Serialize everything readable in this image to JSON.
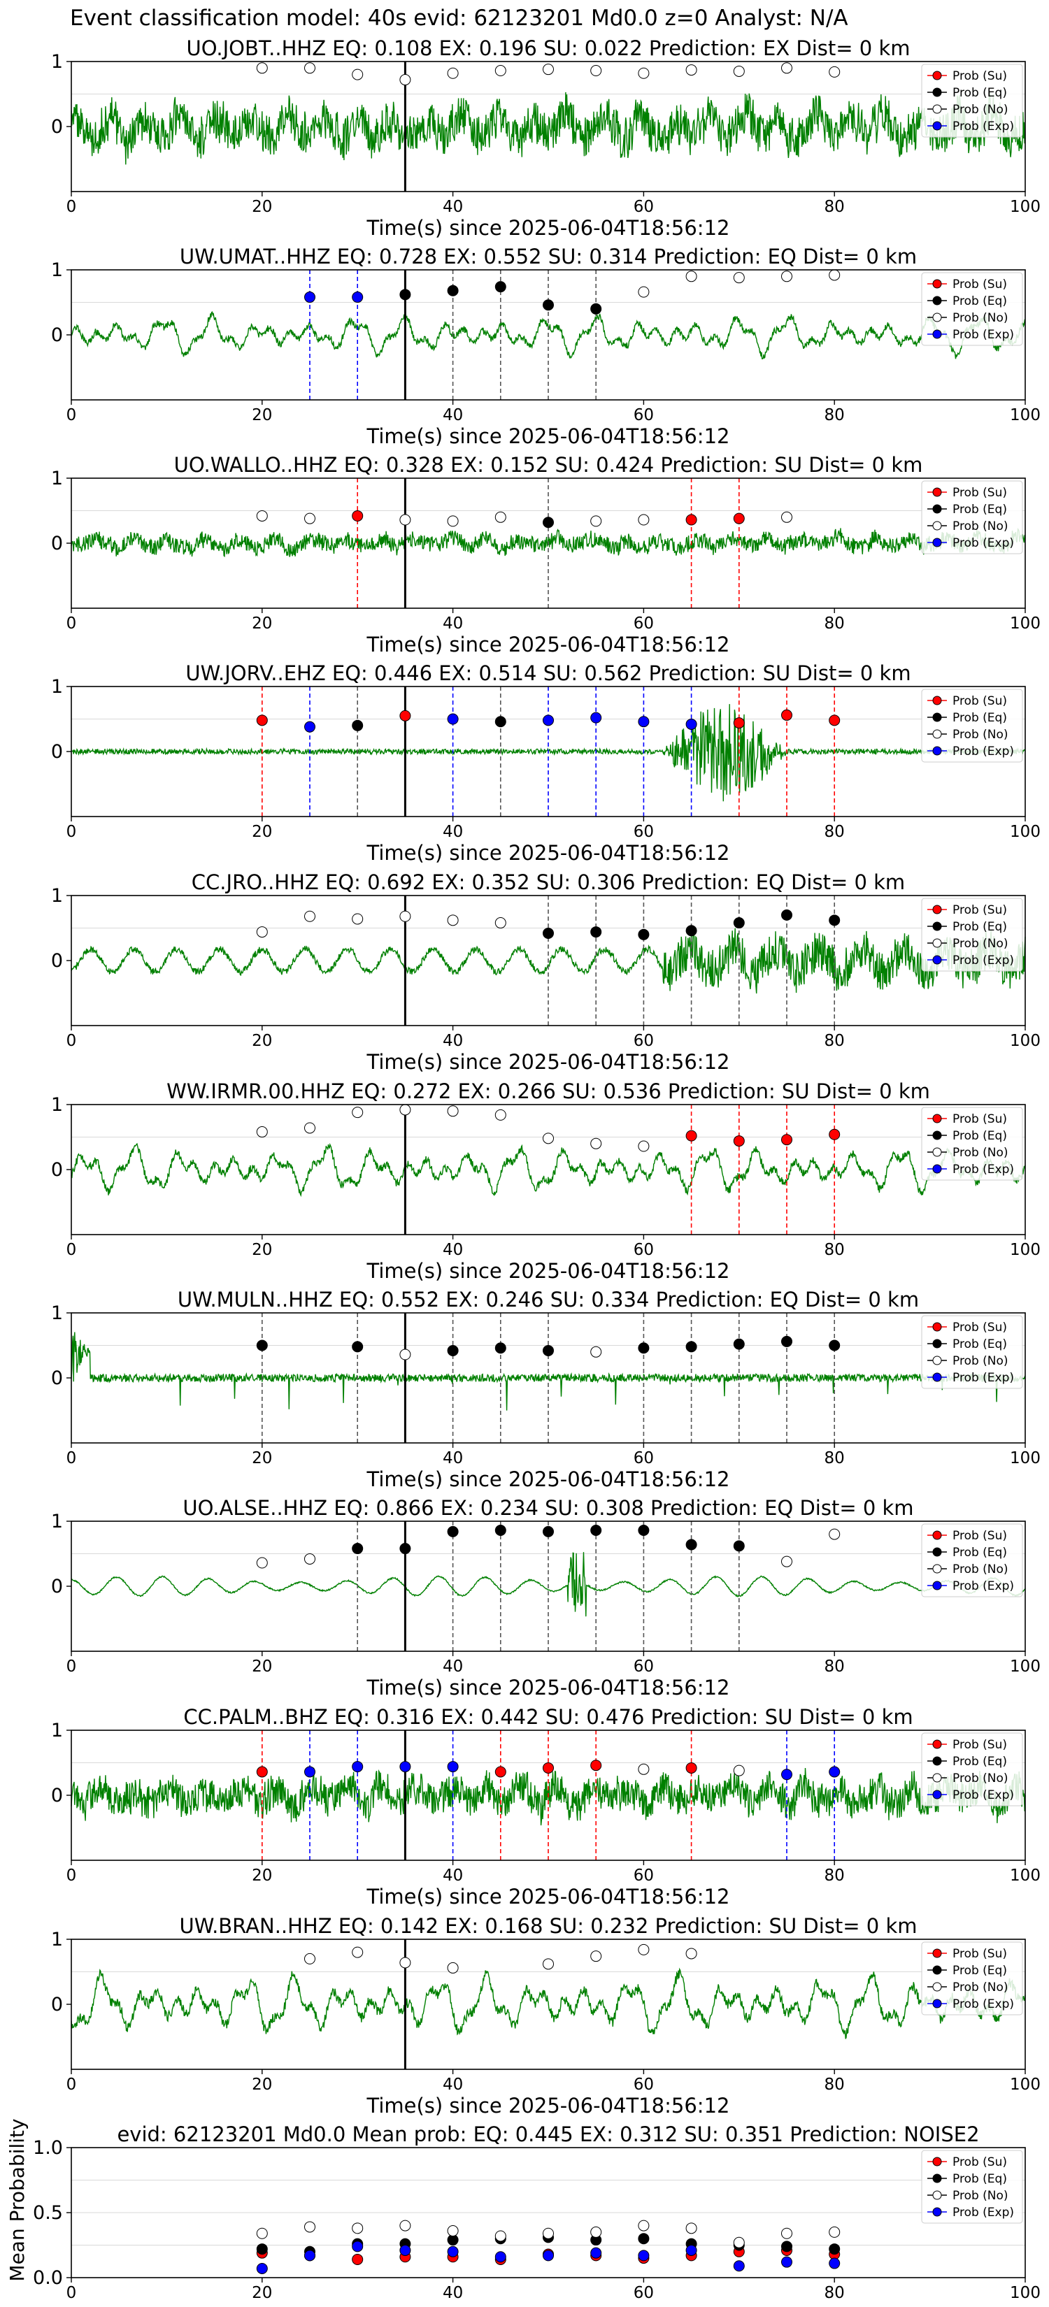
{
  "suptitle": "Event classification model: 40s evid: 62123201 Md0.0 z=0 Analyst: N/A",
  "colors": {
    "waveform": "#008000",
    "su": "#ff0000",
    "eq": "#000000",
    "no": "#ffffff",
    "exp": "#0000ff",
    "event_line": "#000000",
    "grid": "#d9d9d9"
  },
  "legend_labels": [
    "Prob (Su)",
    "Prob (Eq)",
    "Prob (No)",
    "Prob (Exp)"
  ],
  "x_times": [
    20,
    25,
    30,
    35,
    40,
    45,
    50,
    55,
    60,
    65,
    70,
    75,
    80
  ],
  "event_time": 35,
  "chart_data": [
    {
      "type": "line",
      "title": "UO.JOBT..HHZ   EQ: 0.108  EX: 0.196  SU: 0.022   Prediction: EX    Dist= 0 km",
      "xlabel": "Time(s) since 2025-06-04T18:56:12",
      "xlim": [
        0,
        100
      ],
      "ylim": [
        -1,
        1
      ],
      "xticks": [
        "0",
        "20",
        "40",
        "60",
        "80",
        "100"
      ],
      "yticks": [
        "1",
        "0"
      ],
      "waveform": {
        "style": "noisy",
        "amp": 0.55
      },
      "points": [
        {
          "t": 20,
          "p": 0.9,
          "c": "no"
        },
        {
          "t": 25,
          "p": 0.9,
          "c": "no"
        },
        {
          "t": 30,
          "p": 0.8,
          "c": "no"
        },
        {
          "t": 35,
          "p": 0.72,
          "c": "no"
        },
        {
          "t": 40,
          "p": 0.82,
          "c": "no"
        },
        {
          "t": 45,
          "p": 0.86,
          "c": "no"
        },
        {
          "t": 50,
          "p": 0.88,
          "c": "no"
        },
        {
          "t": 55,
          "p": 0.86,
          "c": "no"
        },
        {
          "t": 60,
          "p": 0.82,
          "c": "no"
        },
        {
          "t": 65,
          "p": 0.87,
          "c": "no"
        },
        {
          "t": 70,
          "p": 0.85,
          "c": "no"
        },
        {
          "t": 75,
          "p": 0.9,
          "c": "no"
        },
        {
          "t": 80,
          "p": 0.84,
          "c": "no"
        }
      ]
    },
    {
      "type": "line",
      "title": "UW.UMAT..HHZ   EQ: 0.728  EX: 0.552  SU: 0.314   Prediction: EQ    Dist= 0 km",
      "xlabel": "Time(s) since 2025-06-04T18:56:12",
      "xlim": [
        0,
        100
      ],
      "ylim": [
        -1,
        1
      ],
      "xticks": [
        "0",
        "20",
        "40",
        "60",
        "80",
        "100"
      ],
      "yticks": [
        "1",
        "0"
      ],
      "waveform": {
        "style": "wavy",
        "amp": 0.3
      },
      "points": [
        {
          "t": 25,
          "p": 0.58,
          "c": "exp"
        },
        {
          "t": 30,
          "p": 0.58,
          "c": "exp"
        },
        {
          "t": 35,
          "p": 0.62,
          "c": "eq"
        },
        {
          "t": 40,
          "p": 0.68,
          "c": "eq"
        },
        {
          "t": 45,
          "p": 0.74,
          "c": "eq"
        },
        {
          "t": 50,
          "p": 0.46,
          "c": "eq"
        },
        {
          "t": 55,
          "p": 0.4,
          "c": "eq"
        },
        {
          "t": 60,
          "p": 0.66,
          "c": "no"
        },
        {
          "t": 65,
          "p": 0.9,
          "c": "no"
        },
        {
          "t": 70,
          "p": 0.88,
          "c": "no"
        },
        {
          "t": 75,
          "p": 0.9,
          "c": "no"
        },
        {
          "t": 80,
          "p": 0.92,
          "c": "no"
        }
      ]
    },
    {
      "type": "line",
      "title": "UO.WALLO..HHZ   EQ: 0.328  EX: 0.152  SU: 0.424   Prediction: SU    Dist= 0 km",
      "xlabel": "Time(s) since 2025-06-04T18:56:12",
      "xlim": [
        0,
        100
      ],
      "ylim": [
        -1,
        1
      ],
      "xticks": [
        "0",
        "20",
        "40",
        "60",
        "80",
        "100"
      ],
      "yticks": [
        "1",
        "0"
      ],
      "waveform": {
        "style": "noisy",
        "amp": 0.22
      },
      "points": [
        {
          "t": 20,
          "p": 0.42,
          "c": "no"
        },
        {
          "t": 25,
          "p": 0.38,
          "c": "no"
        },
        {
          "t": 30,
          "p": 0.42,
          "c": "su"
        },
        {
          "t": 35,
          "p": 0.36,
          "c": "no"
        },
        {
          "t": 40,
          "p": 0.34,
          "c": "no"
        },
        {
          "t": 45,
          "p": 0.4,
          "c": "no"
        },
        {
          "t": 50,
          "p": 0.32,
          "c": "eq"
        },
        {
          "t": 55,
          "p": 0.34,
          "c": "no"
        },
        {
          "t": 60,
          "p": 0.36,
          "c": "no"
        },
        {
          "t": 65,
          "p": 0.36,
          "c": "su"
        },
        {
          "t": 70,
          "p": 0.38,
          "c": "su"
        },
        {
          "t": 75,
          "p": 0.4,
          "c": "no"
        }
      ]
    },
    {
      "type": "line",
      "title": "UW.JORV..EHZ   EQ: 0.446  EX: 0.514  SU: 0.562   Prediction: SU    Dist= 0 km",
      "xlabel": "Time(s) since 2025-06-04T18:56:12",
      "xlim": [
        0,
        100
      ],
      "ylim": [
        -1,
        1
      ],
      "xticks": [
        "0",
        "20",
        "40",
        "60",
        "80",
        "100"
      ],
      "yticks": [
        "1",
        "0"
      ],
      "waveform": {
        "style": "burst",
        "amp": 0.04,
        "burst_start": 62,
        "burst_end": 75,
        "burst_amp": 0.75
      },
      "points": [
        {
          "t": 20,
          "p": 0.48,
          "c": "su"
        },
        {
          "t": 25,
          "p": 0.38,
          "c": "exp"
        },
        {
          "t": 30,
          "p": 0.4,
          "c": "eq"
        },
        {
          "t": 35,
          "p": 0.55,
          "c": "su"
        },
        {
          "t": 40,
          "p": 0.5,
          "c": "exp"
        },
        {
          "t": 45,
          "p": 0.46,
          "c": "eq"
        },
        {
          "t": 50,
          "p": 0.48,
          "c": "exp"
        },
        {
          "t": 55,
          "p": 0.52,
          "c": "exp"
        },
        {
          "t": 60,
          "p": 0.46,
          "c": "exp"
        },
        {
          "t": 65,
          "p": 0.42,
          "c": "exp"
        },
        {
          "t": 70,
          "p": 0.44,
          "c": "su"
        },
        {
          "t": 75,
          "p": 0.56,
          "c": "su"
        },
        {
          "t": 80,
          "p": 0.48,
          "c": "su"
        }
      ]
    },
    {
      "type": "line",
      "title": "CC.JRO..HHZ   EQ: 0.692  EX: 0.352  SU: 0.306   Prediction: EQ    Dist= 0 km",
      "xlabel": "Time(s) since 2025-06-04T18:56:12",
      "xlim": [
        0,
        100
      ],
      "ylim": [
        -1,
        1
      ],
      "xticks": [
        "0",
        "20",
        "40",
        "60",
        "80",
        "100"
      ],
      "yticks": [
        "1",
        "0"
      ],
      "waveform": {
        "style": "mixed",
        "amp": 0.25,
        "burst_start": 62,
        "burst_end": 100,
        "burst_amp": 0.5
      },
      "points": [
        {
          "t": 20,
          "p": 0.44,
          "c": "no"
        },
        {
          "t": 25,
          "p": 0.68,
          "c": "no"
        },
        {
          "t": 30,
          "p": 0.64,
          "c": "no"
        },
        {
          "t": 35,
          "p": 0.68,
          "c": "no"
        },
        {
          "t": 40,
          "p": 0.62,
          "c": "no"
        },
        {
          "t": 45,
          "p": 0.58,
          "c": "no"
        },
        {
          "t": 50,
          "p": 0.42,
          "c": "eq"
        },
        {
          "t": 55,
          "p": 0.44,
          "c": "eq"
        },
        {
          "t": 60,
          "p": 0.4,
          "c": "eq"
        },
        {
          "t": 65,
          "p": 0.46,
          "c": "eq"
        },
        {
          "t": 70,
          "p": 0.58,
          "c": "eq"
        },
        {
          "t": 75,
          "p": 0.7,
          "c": "eq"
        },
        {
          "t": 80,
          "p": 0.62,
          "c": "eq"
        }
      ]
    },
    {
      "type": "line",
      "title": "WW.IRMR.00.HHZ   EQ: 0.272  EX: 0.266  SU: 0.536   Prediction: SU    Dist= 0 km",
      "xlabel": "Time(s) since 2025-06-04T18:56:12",
      "xlim": [
        0,
        100
      ],
      "ylim": [
        -1,
        1
      ],
      "xticks": [
        "0",
        "20",
        "40",
        "60",
        "80",
        "100"
      ],
      "yticks": [
        "1",
        "0"
      ],
      "waveform": {
        "style": "wavy",
        "amp": 0.35
      },
      "points": [
        {
          "t": 20,
          "p": 0.58,
          "c": "no"
        },
        {
          "t": 25,
          "p": 0.64,
          "c": "no"
        },
        {
          "t": 30,
          "p": 0.88,
          "c": "no"
        },
        {
          "t": 35,
          "p": 0.92,
          "c": "no"
        },
        {
          "t": 40,
          "p": 0.9,
          "c": "no"
        },
        {
          "t": 45,
          "p": 0.84,
          "c": "no"
        },
        {
          "t": 50,
          "p": 0.48,
          "c": "no"
        },
        {
          "t": 55,
          "p": 0.4,
          "c": "no"
        },
        {
          "t": 60,
          "p": 0.36,
          "c": "no"
        },
        {
          "t": 65,
          "p": 0.52,
          "c": "su"
        },
        {
          "t": 70,
          "p": 0.44,
          "c": "su"
        },
        {
          "t": 75,
          "p": 0.46,
          "c": "su"
        },
        {
          "t": 80,
          "p": 0.54,
          "c": "su"
        }
      ]
    },
    {
      "type": "line",
      "title": "UW.MULN..HHZ   EQ: 0.552  EX: 0.246  SU: 0.334   Prediction: EQ    Dist= 0 km",
      "xlabel": "Time(s) since 2025-06-04T18:56:12",
      "xlim": [
        0,
        100
      ],
      "ylim": [
        -1,
        1
      ],
      "xticks": [
        "0",
        "20",
        "40",
        "60",
        "80",
        "100"
      ],
      "yticks": [
        "1",
        "0"
      ],
      "waveform": {
        "style": "spiky",
        "amp": 0.06
      },
      "points": [
        {
          "t": 20,
          "p": 0.5,
          "c": "eq"
        },
        {
          "t": 30,
          "p": 0.48,
          "c": "eq"
        },
        {
          "t": 35,
          "p": 0.36,
          "c": "no"
        },
        {
          "t": 40,
          "p": 0.42,
          "c": "eq"
        },
        {
          "t": 45,
          "p": 0.46,
          "c": "eq"
        },
        {
          "t": 50,
          "p": 0.42,
          "c": "eq"
        },
        {
          "t": 55,
          "p": 0.4,
          "c": "no"
        },
        {
          "t": 60,
          "p": 0.46,
          "c": "eq"
        },
        {
          "t": 65,
          "p": 0.48,
          "c": "eq"
        },
        {
          "t": 70,
          "p": 0.52,
          "c": "eq"
        },
        {
          "t": 75,
          "p": 0.56,
          "c": "eq"
        },
        {
          "t": 80,
          "p": 0.5,
          "c": "eq"
        }
      ]
    },
    {
      "type": "line",
      "title": "UO.ALSE..HHZ   EQ: 0.866  EX: 0.234  SU: 0.308   Prediction: EQ    Dist= 0 km",
      "xlabel": "Time(s) since 2025-06-04T18:56:12",
      "xlim": [
        0,
        100
      ],
      "ylim": [
        -1,
        1
      ],
      "xticks": [
        "0",
        "20",
        "40",
        "60",
        "80",
        "100"
      ],
      "yticks": [
        "1",
        "0"
      ],
      "waveform": {
        "style": "smooth",
        "amp": 0.15
      },
      "points": [
        {
          "t": 20,
          "p": 0.36,
          "c": "no"
        },
        {
          "t": 25,
          "p": 0.42,
          "c": "no"
        },
        {
          "t": 30,
          "p": 0.58,
          "c": "eq"
        },
        {
          "t": 35,
          "p": 0.58,
          "c": "eq"
        },
        {
          "t": 40,
          "p": 0.84,
          "c": "eq"
        },
        {
          "t": 45,
          "p": 0.86,
          "c": "eq"
        },
        {
          "t": 50,
          "p": 0.84,
          "c": "eq"
        },
        {
          "t": 55,
          "p": 0.86,
          "c": "eq"
        },
        {
          "t": 60,
          "p": 0.86,
          "c": "eq"
        },
        {
          "t": 65,
          "p": 0.64,
          "c": "eq"
        },
        {
          "t": 70,
          "p": 0.62,
          "c": "eq"
        },
        {
          "t": 75,
          "p": 0.38,
          "c": "no"
        },
        {
          "t": 80,
          "p": 0.8,
          "c": "no"
        }
      ]
    },
    {
      "type": "line",
      "title": "CC.PALM..BHZ   EQ: 0.316  EX: 0.442  SU: 0.476   Prediction: SU    Dist= 0 km",
      "xlabel": "Time(s) since 2025-06-04T18:56:12",
      "xlim": [
        0,
        100
      ],
      "ylim": [
        -1,
        1
      ],
      "xticks": [
        "0",
        "20",
        "40",
        "60",
        "80",
        "100"
      ],
      "yticks": [
        "1",
        "0"
      ],
      "waveform": {
        "style": "noisy",
        "amp": 0.45
      },
      "points": [
        {
          "t": 20,
          "p": 0.36,
          "c": "su"
        },
        {
          "t": 25,
          "p": 0.36,
          "c": "exp"
        },
        {
          "t": 30,
          "p": 0.44,
          "c": "exp"
        },
        {
          "t": 35,
          "p": 0.44,
          "c": "exp"
        },
        {
          "t": 40,
          "p": 0.44,
          "c": "exp"
        },
        {
          "t": 45,
          "p": 0.36,
          "c": "su"
        },
        {
          "t": 50,
          "p": 0.42,
          "c": "su"
        },
        {
          "t": 55,
          "p": 0.46,
          "c": "su"
        },
        {
          "t": 60,
          "p": 0.4,
          "c": "no"
        },
        {
          "t": 65,
          "p": 0.42,
          "c": "su"
        },
        {
          "t": 70,
          "p": 0.38,
          "c": "no"
        },
        {
          "t": 75,
          "p": 0.32,
          "c": "exp"
        },
        {
          "t": 80,
          "p": 0.36,
          "c": "exp"
        }
      ]
    },
    {
      "type": "line",
      "title": "UW.BRAN..HHZ   EQ: 0.142  EX: 0.168  SU: 0.232   Prediction: SU    Dist= 0 km",
      "xlabel": "Time(s) since 2025-06-04T18:56:12",
      "xlim": [
        0,
        100
      ],
      "ylim": [
        -1,
        1
      ],
      "xticks": [
        "0",
        "20",
        "40",
        "60",
        "80",
        "100"
      ],
      "yticks": [
        "1",
        "0"
      ],
      "waveform": {
        "style": "wavy",
        "amp": 0.45
      },
      "points": [
        {
          "t": 25,
          "p": 0.7,
          "c": "no"
        },
        {
          "t": 30,
          "p": 0.8,
          "c": "no"
        },
        {
          "t": 35,
          "p": 0.64,
          "c": "no"
        },
        {
          "t": 40,
          "p": 0.56,
          "c": "no"
        },
        {
          "t": 50,
          "p": 0.62,
          "c": "no"
        },
        {
          "t": 55,
          "p": 0.74,
          "c": "no"
        },
        {
          "t": 60,
          "p": 0.84,
          "c": "no"
        },
        {
          "t": 65,
          "p": 0.78,
          "c": "no"
        }
      ]
    },
    {
      "type": "scatter",
      "title": "evid: 62123201  Md0.0   Mean prob:   EQ: 0.445  EX: 0.312  SU: 0.351   Prediction: NOISE2",
      "ylabel": "Mean Probability",
      "xlim": [
        0,
        100
      ],
      "ylim": [
        0,
        1
      ],
      "xticks": [
        "0",
        "20",
        "40",
        "60",
        "80",
        "100"
      ],
      "yticks": [
        "1.0",
        "0.5",
        "0.0"
      ],
      "series": [
        {
          "name": "Prob (Su)",
          "key": "su",
          "values": [
            0.19,
            0.17,
            0.14,
            0.16,
            0.16,
            0.14,
            0.18,
            0.17,
            0.15,
            0.17,
            0.2,
            0.21,
            0.18
          ]
        },
        {
          "name": "Prob (Eq)",
          "key": "eq",
          "values": [
            0.22,
            0.2,
            0.26,
            0.26,
            0.29,
            0.3,
            0.31,
            0.29,
            0.3,
            0.26,
            0.25,
            0.24,
            0.22
          ]
        },
        {
          "name": "Prob (No)",
          "key": "no",
          "values": [
            0.34,
            0.39,
            0.38,
            0.4,
            0.36,
            0.32,
            0.34,
            0.35,
            0.4,
            0.38,
            0.27,
            0.34,
            0.35
          ]
        },
        {
          "name": "Prob (Exp)",
          "key": "exp",
          "values": [
            0.07,
            0.17,
            0.24,
            0.21,
            0.2,
            0.16,
            0.17,
            0.19,
            0.17,
            0.21,
            0.09,
            0.12,
            0.11
          ]
        }
      ]
    }
  ]
}
